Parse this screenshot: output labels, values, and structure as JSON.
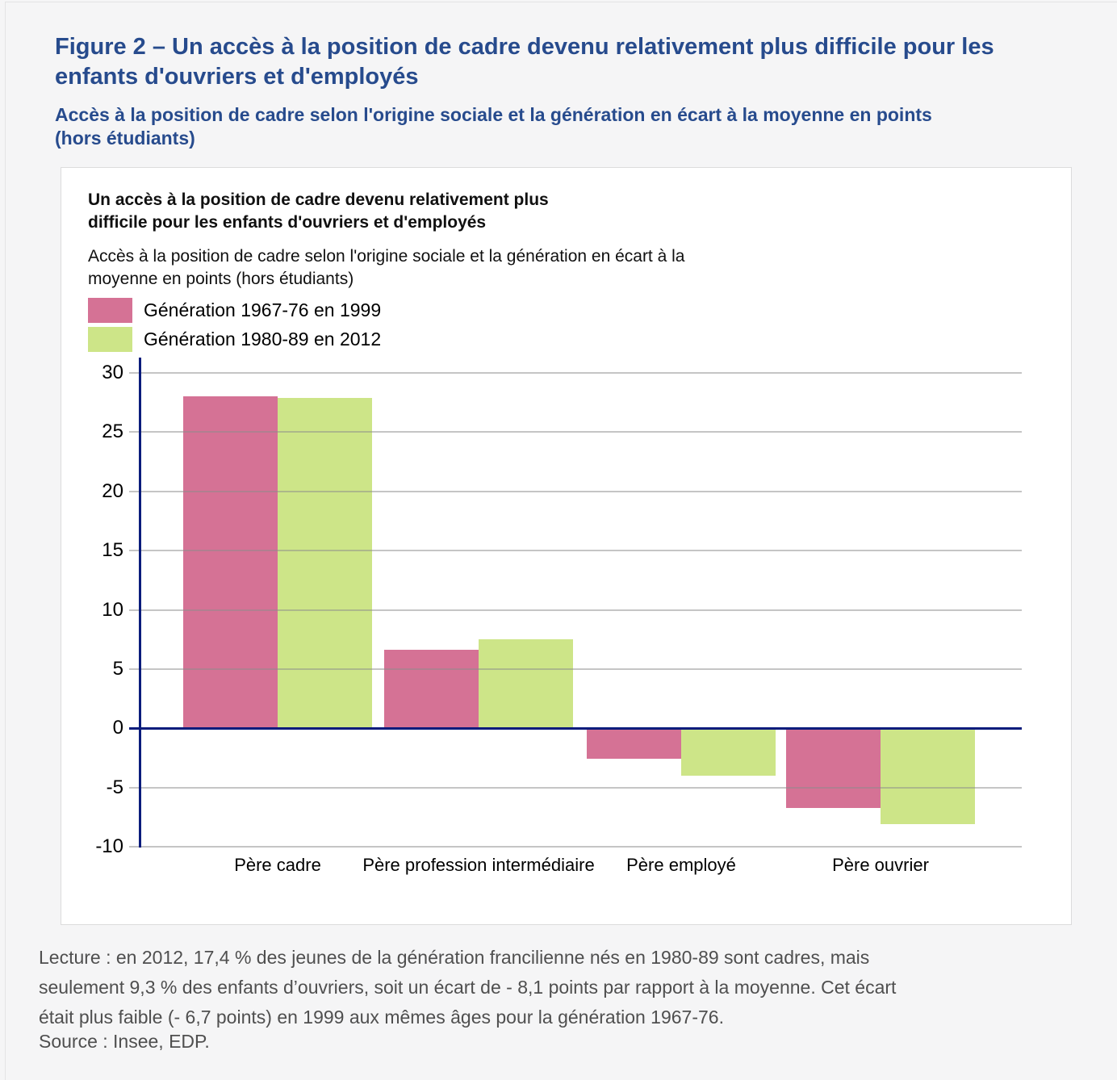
{
  "page": {
    "figure_title": "Figure 2 – Un accès à la position de cadre devenu relativement plus difficile pour les\nenfants d'ouvriers et d'employés",
    "figure_subtitle": "Accès à la position de cadre selon l'origine sociale et la génération en écart à la moyenne en points\n(hors étudiants)"
  },
  "chart_data": {
    "type": "bar",
    "title": "Un accès à la position de cadre devenu relativement plus\ndifficile pour les enfants d'ouvriers et d'employés",
    "subtitle": "Accès à la position de cadre selon l'origine sociale et la génération en écart à la\nmoyenne en points (hors étudiants)",
    "categories": [
      "Père cadre",
      "Père profession intermédiaire",
      "Père employé",
      "Père ouvrier"
    ],
    "series": [
      {
        "name": "Génération 1967-76 en 1999",
        "color": "#d57295",
        "values": [
          28.0,
          6.6,
          -2.6,
          -6.7
        ]
      },
      {
        "name": "Génération 1980-89 en 2012",
        "color": "#cde588",
        "values": [
          27.9,
          7.5,
          -4.0,
          -8.1
        ]
      }
    ],
    "ylabel": "",
    "xlabel": "",
    "ylim": [
      -10,
      30
    ],
    "yticks": [
      30,
      25,
      20,
      15,
      10,
      5,
      0,
      -5,
      -10
    ],
    "grid": true,
    "legend_position": "top-left",
    "colors": {
      "axis": "#0a1c7c",
      "gridline": "#bdbdbd",
      "title_blue": "#274b8d"
    }
  },
  "notes": {
    "lecture": "Lecture : en 2012, 17,4 % des jeunes de la génération francilienne nés en 1980-89 sont cadres, mais\nseulement 9,3 % des enfants d’ouvriers, soit un écart de - 8,1 points par rapport à la moyenne. Cet écart\nétait plus faible (- 6,7 points) en 1999 aux mêmes âges pour la génération 1967-76.",
    "source": "Source : Insee, EDP."
  }
}
